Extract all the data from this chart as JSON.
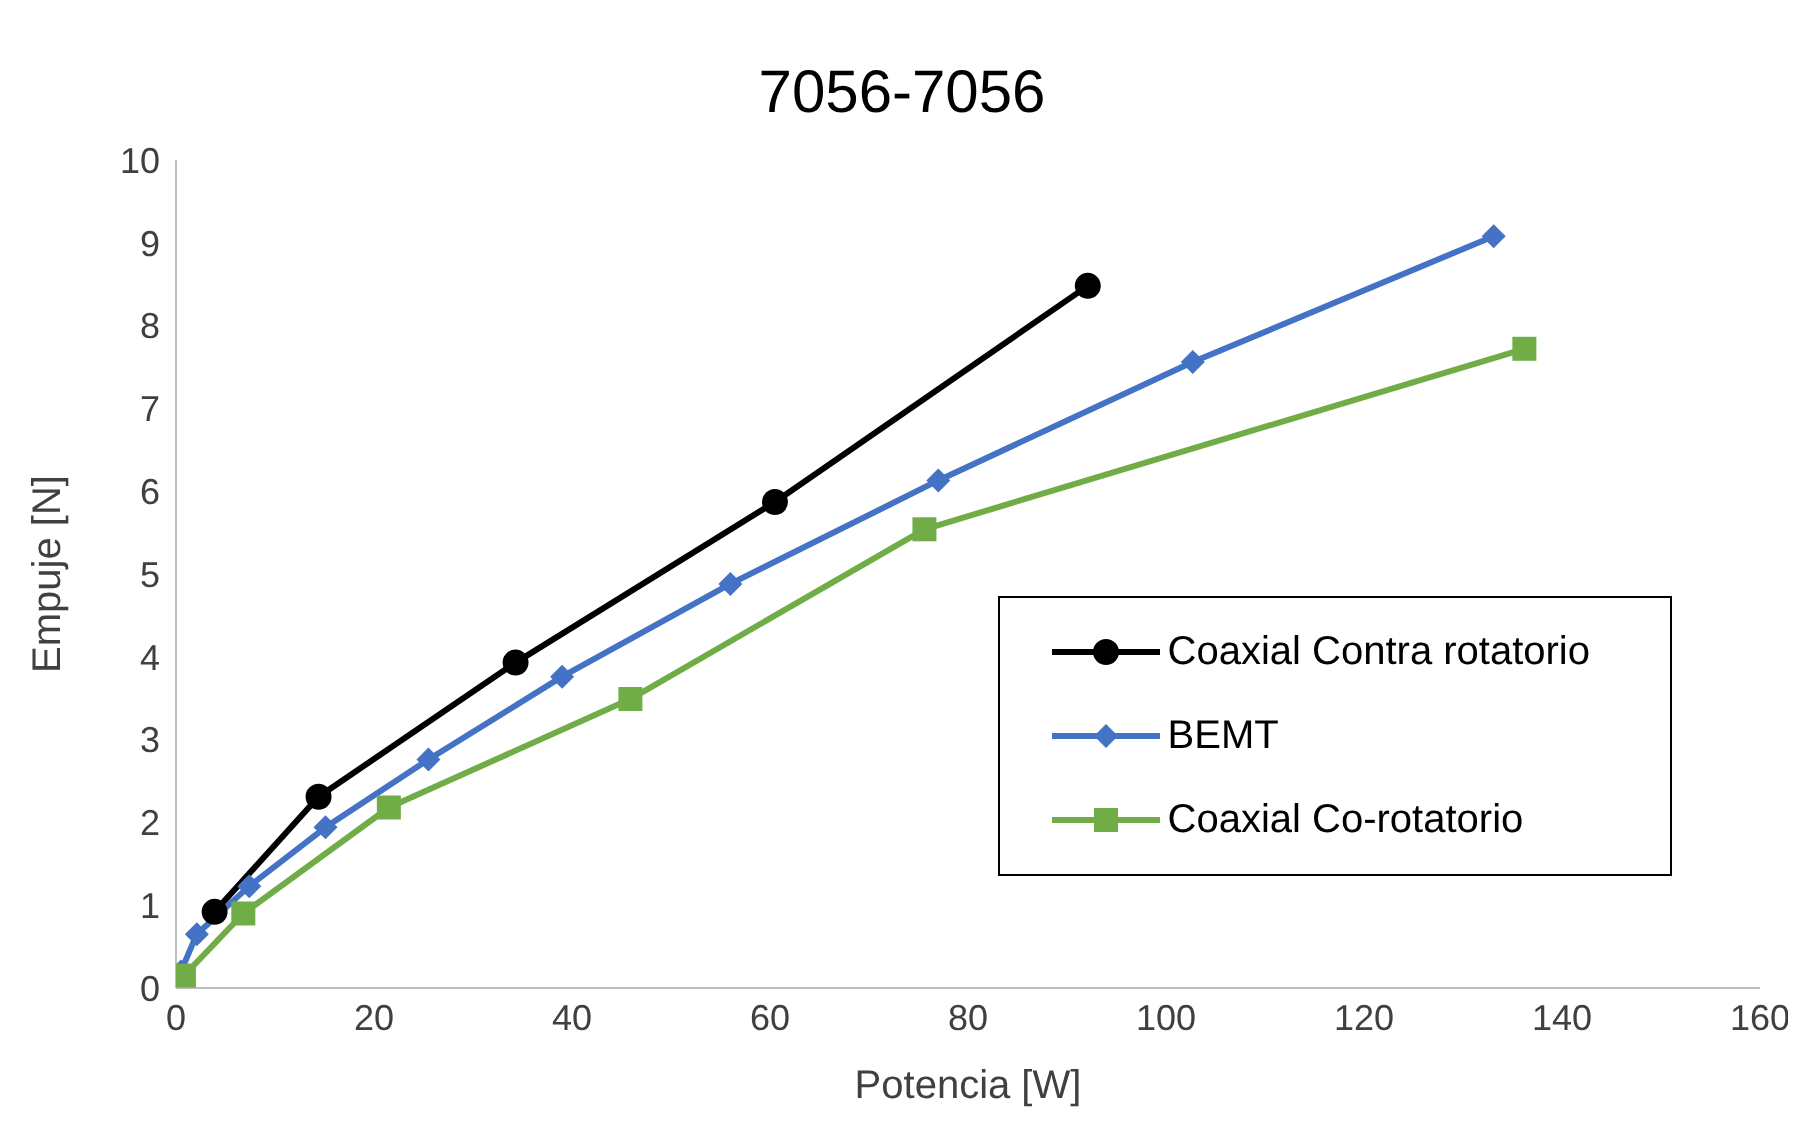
{
  "chart_data": {
    "type": "line",
    "title": "7056-7056",
    "xlabel": "Potencia [W]",
    "ylabel": "Empuje [N]",
    "xlim": [
      0,
      160
    ],
    "xticks": [
      0,
      20,
      40,
      60,
      80,
      100,
      120,
      140,
      160
    ],
    "ylim": [
      0,
      10
    ],
    "yticks": [
      0,
      1,
      2,
      3,
      4,
      5,
      6,
      7,
      8,
      9,
      10
    ],
    "grid": false,
    "legend": "right",
    "series": [
      {
        "name": "Coaxial Contra rotatorio",
        "color": "#000000",
        "marker": "circle",
        "x": [
          3.9,
          14.4,
          34.3,
          60.5,
          92.1
        ],
        "values": [
          0.92,
          2.31,
          3.93,
          5.87,
          8.48
        ]
      },
      {
        "name": "BEMT",
        "color": "#4472c4",
        "marker": "diamond",
        "x": [
          0.5,
          2.1,
          7.4,
          15.1,
          25.5,
          39.0,
          56.0,
          77.0,
          102.7,
          133.1
        ],
        "values": [
          0.2,
          0.65,
          1.23,
          1.94,
          2.76,
          3.76,
          4.88,
          6.13,
          7.56,
          9.08
        ]
      },
      {
        "name": "Coaxial Co-rotatorio",
        "color": "#70ad47",
        "marker": "square",
        "x": [
          0.8,
          6.8,
          21.5,
          45.9,
          75.6,
          136.2
        ],
        "values": [
          0.15,
          0.9,
          2.18,
          3.49,
          5.54,
          7.72
        ]
      }
    ]
  }
}
